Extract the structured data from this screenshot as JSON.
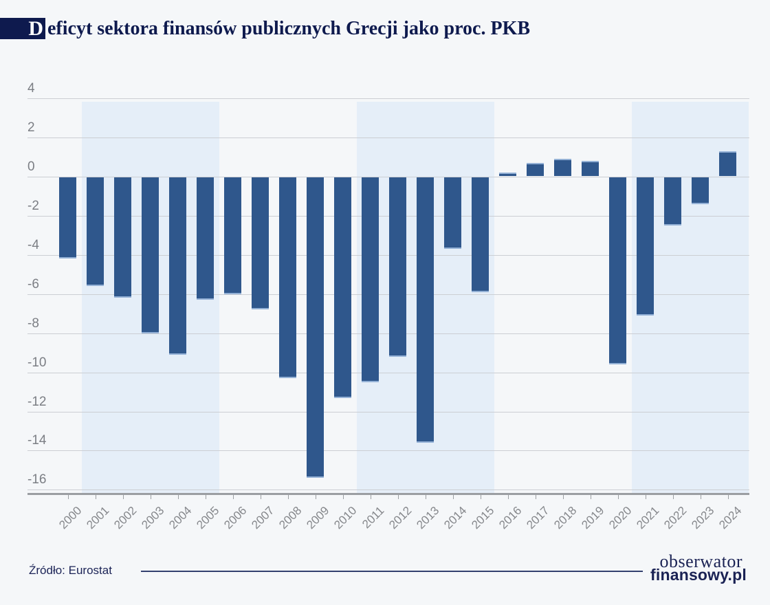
{
  "title": {
    "drop_cap": "D",
    "rest": "eficyt sektora finansów publicznych Grecji jako proc. PKB"
  },
  "chart_data": {
    "type": "bar",
    "title": "Deficyt sektora finansów publicznych Grecji jako proc. PKB",
    "xlabel": "",
    "ylabel": "",
    "ylim": [
      -16,
      4
    ],
    "grid": true,
    "legend": "none",
    "categories": [
      "2000",
      "2001",
      "2002",
      "2003",
      "2004",
      "2005",
      "2006",
      "2007",
      "2008",
      "2009",
      "2010",
      "2011",
      "2012",
      "2013",
      "2014",
      "2015",
      "2016",
      "2017",
      "2018",
      "2019",
      "2020",
      "2021",
      "2022",
      "2023",
      "2024"
    ],
    "values": [
      -4.2,
      -5.6,
      -6.2,
      -8.0,
      -9.1,
      -6.3,
      -6.0,
      -6.8,
      -10.3,
      -15.4,
      -11.3,
      -10.5,
      -9.2,
      -13.6,
      -3.7,
      -5.9,
      0.2,
      0.7,
      0.9,
      0.8,
      -9.6,
      -7.1,
      -2.5,
      -1.4,
      1.3
    ],
    "y_ticks": [
      4,
      2,
      0,
      -2,
      -4,
      -6,
      -8,
      -10,
      -12,
      -14,
      -16
    ],
    "shaded_periods": [
      [
        "2001",
        "2005"
      ],
      [
        "2011",
        "2015"
      ],
      [
        "2021",
        "2024"
      ]
    ],
    "colors": {
      "bar": "#2f578c",
      "bar_edge_highlight": "#94b1d6",
      "band": "#e5eef8",
      "background": "#f5f7f9",
      "gridline": "#cbced3",
      "axis": "#9b9ea2",
      "tick_text": "#7b7e84",
      "title_navy": "#0e1a4e"
    }
  },
  "footer": {
    "source": "Źródło: Eurostat",
    "logo_line1": "obserwator",
    "logo_line2": "finansowy.pl"
  }
}
